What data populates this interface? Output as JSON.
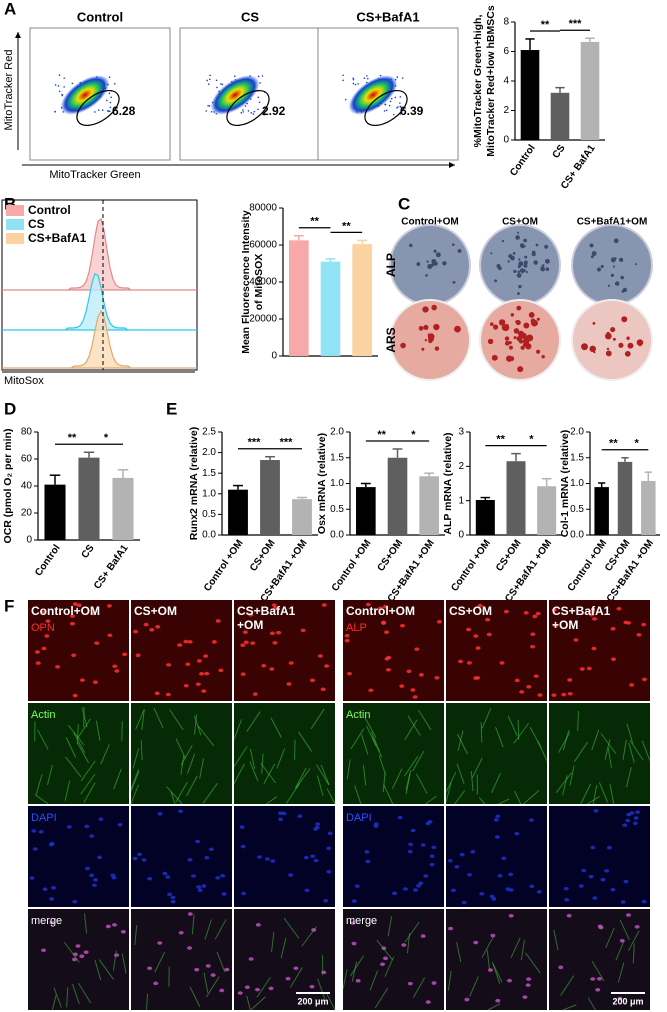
{
  "panels": {
    "letters": [
      "A",
      "B",
      "C",
      "D",
      "E",
      "F"
    ],
    "flow": {
      "y_label": "MitoTracker Red",
      "x_label": "MitoTracker Green",
      "samples": [
        {
          "name": "Control",
          "gate": 6.28
        },
        {
          "name": "CS",
          "gate": 2.92
        },
        {
          "name": "CS+BafA1",
          "gate": 6.39
        }
      ]
    },
    "histogram": {
      "legend": [
        "Control",
        "CS",
        "CS+BafA1"
      ],
      "x_label": "MitoSox"
    },
    "plates": {
      "columns": [
        "Control+OM",
        "CS+OM",
        "CS+BafA1+OM"
      ],
      "rows": [
        "ALP",
        "ARS"
      ]
    },
    "microscopy": [
      {
        "columns": [
          [
            "Control+OM"
          ],
          [
            "CS+OM"
          ],
          [
            "CS+BafA1",
            "+OM"
          ]
        ],
        "rows": [
          "OPN",
          "Actin",
          "DAPI",
          "merge"
        ],
        "scale": "200 μm"
      },
      {
        "columns": [
          [
            "Control+OM"
          ],
          [
            "CS+OM"
          ],
          [
            "CS+BafA1",
            "+OM"
          ]
        ],
        "rows": [
          "ALP",
          "Actin",
          "DAPI",
          "merge"
        ],
        "scale": "200 μm"
      }
    ]
  },
  "chart_data": [
    {
      "type": "bar",
      "ylabel": [
        "%MitoTracker Green+high,",
        "MitoTracker Red+low hBMSCs"
      ],
      "categories": [
        "Control",
        "CS",
        "CS+ BafA1"
      ],
      "values": [
        6.1,
        3.2,
        6.65
      ],
      "errors": [
        0.75,
        0.35,
        0.25
      ],
      "colors": [
        "#000000",
        "#5f5f5f",
        "#b3b3b3"
      ],
      "ylim": [
        0,
        8
      ],
      "yticks": [
        0,
        2,
        4,
        6,
        8
      ],
      "annotations": [
        "**",
        "***"
      ]
    },
    {
      "type": "bar",
      "ylabel": [
        "Mean Fluorescence Intensity",
        "of MitoSOX"
      ],
      "values": [
        62500,
        51000,
        60500
      ],
      "errors": [
        2500,
        1500,
        2000
      ],
      "colors": [
        "#f7a8a8",
        "#8fe3f5",
        "#fbd3a2"
      ],
      "ylim": [
        0,
        80000
      ],
      "yticks": [
        0,
        20000,
        40000,
        60000,
        80000
      ],
      "annotations": [
        "**",
        "**"
      ]
    },
    {
      "type": "bar",
      "ylabel": [
        "OCR (pmol O₂ per min)"
      ],
      "categories": [
        "Control",
        "CS",
        "CS+ BafA1"
      ],
      "values": [
        41,
        61,
        46
      ],
      "errors": [
        7,
        4,
        6
      ],
      "colors": [
        "#000000",
        "#5f5f5f",
        "#b3b3b3"
      ],
      "ylim": [
        0,
        80
      ],
      "yticks": [
        0,
        20,
        40,
        60,
        80
      ],
      "annotations": [
        "**",
        "*"
      ]
    },
    {
      "type": "bar",
      "ylabel": [
        "Runx2 mRNA (relative)"
      ],
      "categories": [
        "Control +OM",
        "CS+OM",
        "CS+BafA1 +OM"
      ],
      "values": [
        1.1,
        1.82,
        0.87
      ],
      "errors": [
        0.1,
        0.08,
        0.04
      ],
      "colors": [
        "#000000",
        "#5f5f5f",
        "#b3b3b3"
      ],
      "ylim": [
        0,
        2.5
      ],
      "yticks": [
        {
          "value": 0,
          "label": "0.0"
        },
        0.5,
        {
          "value": 1,
          "label": "1.0"
        },
        1.5,
        {
          "value": 2,
          "label": "2.0"
        },
        2.5
      ],
      "annotations": [
        "***",
        "***"
      ]
    },
    {
      "type": "bar",
      "ylabel": [
        "Osx mRNA (relative)"
      ],
      "categories": [
        "Control +OM",
        "CS+OM",
        "CS+BafA1 +OM"
      ],
      "values": [
        0.93,
        1.5,
        1.14
      ],
      "errors": [
        0.07,
        0.17,
        0.06
      ],
      "colors": [
        "#000000",
        "#5f5f5f",
        "#b3b3b3"
      ],
      "ylim": [
        0,
        2
      ],
      "yticks": [
        {
          "value": 0,
          "label": "0.0"
        },
        0.5,
        {
          "value": 1,
          "label": "1.0"
        },
        1.5,
        {
          "value": 2,
          "label": "2.0"
        }
      ],
      "annotations": [
        "**",
        "*"
      ]
    },
    {
      "type": "bar",
      "ylabel": [
        "ALP mRNA (relative)"
      ],
      "categories": [
        "Control +OM",
        "CS+OM",
        "CS+BafA1 +OM"
      ],
      "values": [
        1.02,
        2.15,
        1.42
      ],
      "errors": [
        0.07,
        0.22,
        0.22
      ],
      "colors": [
        "#000000",
        "#5f5f5f",
        "#b3b3b3"
      ],
      "ylim": [
        0,
        3
      ],
      "yticks": [
        0,
        1,
        2,
        3
      ],
      "annotations": [
        "**",
        "*"
      ]
    },
    {
      "type": "bar",
      "ylabel": [
        "Col-1 mRNA (relative)"
      ],
      "categories": [
        "Control +OM",
        "CS+OM",
        "CS+BafA1 +OM"
      ],
      "values": [
        0.93,
        1.42,
        1.05
      ],
      "errors": [
        0.08,
        0.08,
        0.17
      ],
      "colors": [
        "#000000",
        "#5f5f5f",
        "#b3b3b3"
      ],
      "ylim": [
        0,
        2
      ],
      "yticks": [
        {
          "value": 0,
          "label": "0.0"
        },
        0.5,
        {
          "value": 1,
          "label": "1.0"
        },
        1.5,
        {
          "value": 2,
          "label": "2.0"
        }
      ],
      "annotations": [
        "**",
        "*"
      ]
    }
  ]
}
